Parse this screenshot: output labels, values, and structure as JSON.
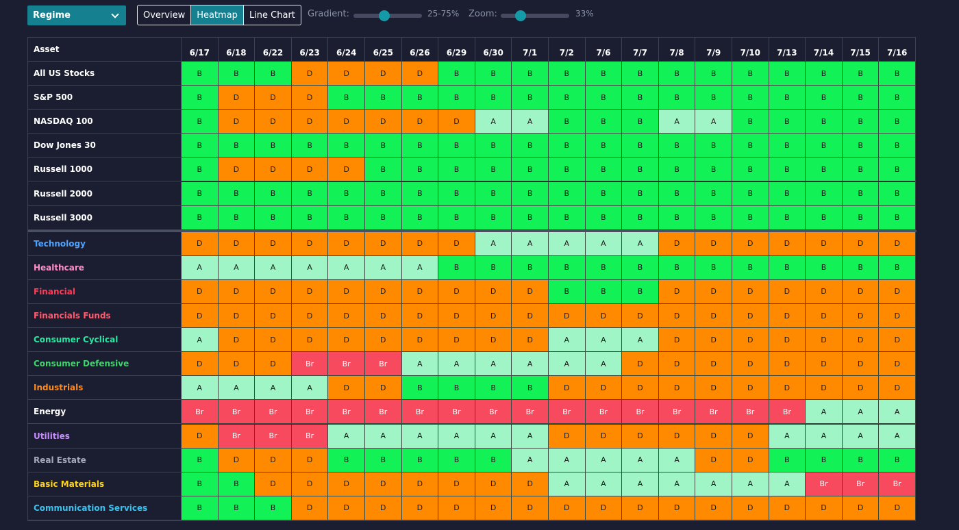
{
  "toolbar": {
    "regime_label": "Regime",
    "tabs": [
      {
        "label": "Overview",
        "active": false
      },
      {
        "label": "Heatmap",
        "active": true
      },
      {
        "label": "Line Chart",
        "active": false
      }
    ],
    "gradient_label": "Gradient:",
    "gradient_value": "25-75%",
    "gradient_level": 0.45,
    "zoom_label": "Zoom:",
    "zoom_value": "33%",
    "zoom_level": 0.29
  },
  "colors": {
    "B": "#12f257",
    "D": "#ff8a00",
    "A": "#9ff5c6",
    "Br": "#f74a5e",
    "B_text": "#1a1a1a",
    "Br_text": "#ffffff"
  },
  "heatmap": {
    "corner_label": "Asset",
    "dates": [
      "6/17",
      "6/18",
      "6/22",
      "6/23",
      "6/24",
      "6/25",
      "6/26",
      "6/29",
      "6/30",
      "7/1",
      "7/2",
      "7/6",
      "7/7",
      "7/8",
      "7/9",
      "7/10",
      "7/13",
      "7/14",
      "7/15",
      "7/16"
    ],
    "groups": [
      {
        "rows": [
          {
            "name": "All US Stocks",
            "color": "#ffffff",
            "values": [
              "B",
              "B",
              "B",
              "D",
              "D",
              "D",
              "D",
              "B",
              "B",
              "B",
              "B",
              "B",
              "B",
              "B",
              "B",
              "B",
              "B",
              "B",
              "B",
              "B"
            ]
          },
          {
            "name": "S&P 500",
            "color": "#ffffff",
            "values": [
              "B",
              "D",
              "D",
              "D",
              "B",
              "B",
              "B",
              "B",
              "B",
              "B",
              "B",
              "B",
              "B",
              "B",
              "B",
              "B",
              "B",
              "B",
              "B",
              "B"
            ]
          },
          {
            "name": "NASDAQ 100",
            "color": "#ffffff",
            "values": [
              "B",
              "D",
              "D",
              "D",
              "D",
              "D",
              "D",
              "D",
              "A",
              "A",
              "B",
              "B",
              "B",
              "A",
              "A",
              "B",
              "B",
              "B",
              "B",
              "B"
            ]
          },
          {
            "name": "Dow Jones 30",
            "color": "#ffffff",
            "values": [
              "B",
              "B",
              "B",
              "B",
              "B",
              "B",
              "B",
              "B",
              "B",
              "B",
              "B",
              "B",
              "B",
              "B",
              "B",
              "B",
              "B",
              "B",
              "B",
              "B"
            ]
          },
          {
            "name": "Russell 1000",
            "color": "#ffffff",
            "values": [
              "B",
              "D",
              "D",
              "D",
              "D",
              "B",
              "B",
              "B",
              "B",
              "B",
              "B",
              "B",
              "B",
              "B",
              "B",
              "B",
              "B",
              "B",
              "B",
              "B"
            ]
          },
          {
            "name": "Russell 2000",
            "color": "#ffffff",
            "values": [
              "B",
              "B",
              "B",
              "B",
              "B",
              "B",
              "B",
              "B",
              "B",
              "B",
              "B",
              "B",
              "B",
              "B",
              "B",
              "B",
              "B",
              "B",
              "B",
              "B"
            ]
          },
          {
            "name": "Russell 3000",
            "color": "#ffffff",
            "values": [
              "B",
              "B",
              "B",
              "B",
              "B",
              "B",
              "B",
              "B",
              "B",
              "B",
              "B",
              "B",
              "B",
              "B",
              "B",
              "B",
              "B",
              "B",
              "B",
              "B"
            ]
          }
        ]
      },
      {
        "rows": [
          {
            "name": "Technology",
            "color": "#4da3ff",
            "values": [
              "D",
              "D",
              "D",
              "D",
              "D",
              "D",
              "D",
              "D",
              "A",
              "A",
              "A",
              "A",
              "A",
              "D",
              "D",
              "D",
              "D",
              "D",
              "D",
              "D"
            ]
          },
          {
            "name": "Healthcare",
            "color": "#ff8fc8",
            "values": [
              "A",
              "A",
              "A",
              "A",
              "A",
              "A",
              "A",
              "B",
              "B",
              "B",
              "B",
              "B",
              "B",
              "B",
              "B",
              "B",
              "B",
              "B",
              "B",
              "B"
            ]
          },
          {
            "name": "Financial",
            "color": "#ff3b55",
            "values": [
              "D",
              "D",
              "D",
              "D",
              "D",
              "D",
              "D",
              "D",
              "D",
              "D",
              "B",
              "B",
              "B",
              "D",
              "D",
              "D",
              "D",
              "D",
              "D",
              "D"
            ]
          },
          {
            "name": "Financials Funds",
            "color": "#ff5a6e",
            "values": [
              "D",
              "D",
              "D",
              "D",
              "D",
              "D",
              "D",
              "D",
              "D",
              "D",
              "D",
              "D",
              "D",
              "D",
              "D",
              "D",
              "D",
              "D",
              "D",
              "D"
            ]
          },
          {
            "name": "Consumer Cyclical",
            "color": "#28e8a0",
            "values": [
              "A",
              "D",
              "D",
              "D",
              "D",
              "D",
              "D",
              "D",
              "D",
              "D",
              "A",
              "A",
              "A",
              "D",
              "D",
              "D",
              "D",
              "D",
              "D",
              "D"
            ]
          },
          {
            "name": "Consumer Defensive",
            "color": "#3ed66a",
            "values": [
              "D",
              "D",
              "D",
              "Br",
              "Br",
              "Br",
              "A",
              "A",
              "A",
              "A",
              "A",
              "A",
              "D",
              "D",
              "D",
              "D",
              "D",
              "D",
              "D",
              "D"
            ]
          },
          {
            "name": "Industrials",
            "color": "#ff8a1a",
            "values": [
              "A",
              "A",
              "A",
              "A",
              "D",
              "D",
              "B",
              "B",
              "B",
              "B",
              "D",
              "D",
              "D",
              "D",
              "D",
              "D",
              "D",
              "D",
              "D",
              "D"
            ]
          },
          {
            "name": "Energy",
            "color": "#ffffff",
            "values": [
              "Br",
              "Br",
              "Br",
              "Br",
              "Br",
              "Br",
              "Br",
              "Br",
              "Br",
              "Br",
              "Br",
              "Br",
              "Br",
              "Br",
              "Br",
              "Br",
              "Br",
              "A",
              "A",
              "A"
            ]
          },
          {
            "name": "Utilities",
            "color": "#c88cff",
            "values": [
              "D",
              "Br",
              "Br",
              "Br",
              "A",
              "A",
              "A",
              "A",
              "A",
              "A",
              "D",
              "D",
              "D",
              "D",
              "D",
              "D",
              "A",
              "A",
              "A",
              "A"
            ]
          },
          {
            "name": "Real Estate",
            "color": "#a3a8b8",
            "values": [
              "B",
              "D",
              "D",
              "D",
              "B",
              "B",
              "B",
              "B",
              "B",
              "A",
              "A",
              "A",
              "A",
              "A",
              "D",
              "D",
              "B",
              "B",
              "B",
              "B"
            ]
          },
          {
            "name": "Basic Materials",
            "color": "#ffd21a",
            "values": [
              "B",
              "B",
              "D",
              "D",
              "D",
              "D",
              "D",
              "D",
              "D",
              "D",
              "A",
              "A",
              "A",
              "A",
              "A",
              "A",
              "A",
              "Br",
              "Br",
              "Br"
            ]
          },
          {
            "name": "Communication Services",
            "color": "#36c3f0",
            "values": [
              "B",
              "B",
              "B",
              "D",
              "D",
              "D",
              "D",
              "D",
              "D",
              "D",
              "D",
              "D",
              "D",
              "D",
              "D",
              "D",
              "D",
              "D",
              "D",
              "D"
            ]
          }
        ]
      }
    ]
  }
}
